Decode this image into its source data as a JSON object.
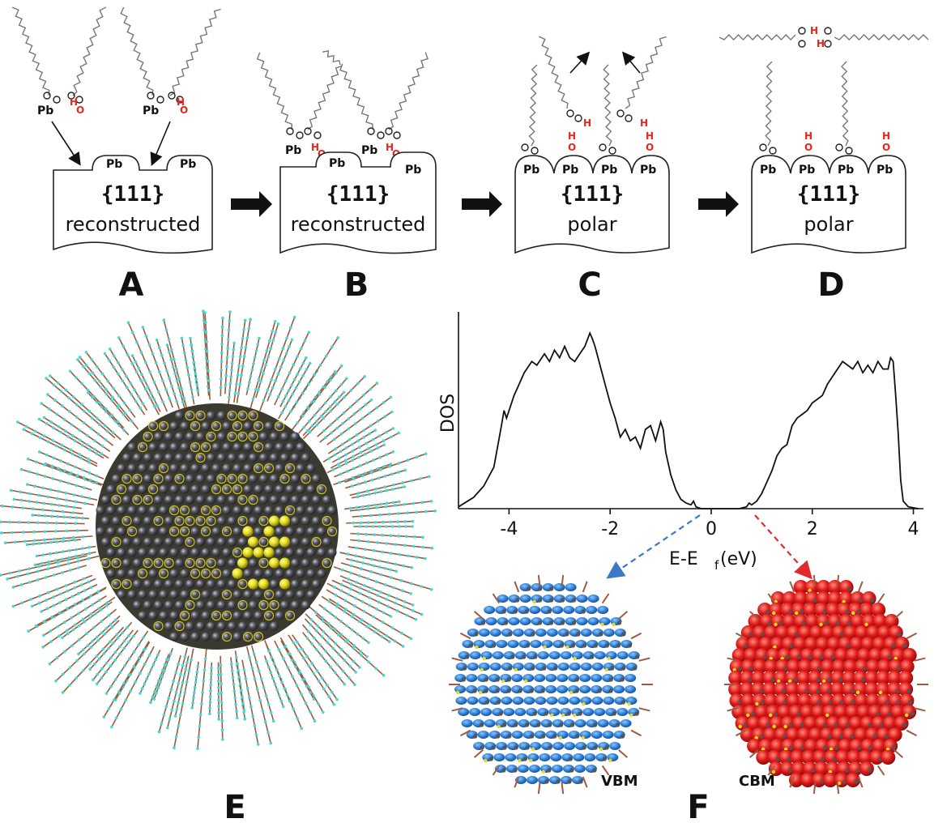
{
  "panels": {
    "A": {
      "letter": "A",
      "facet": "{111}",
      "surface": "reconstructed",
      "pb_left": "Pb",
      "pb_right": "Pb",
      "pb_ligand": "Pb"
    },
    "B": {
      "letter": "B",
      "facet": "{111}",
      "surface": "reconstructed",
      "pb_left": "Pb",
      "pb_right": "Pb",
      "pb_ligand": "Pb"
    },
    "C": {
      "letter": "C",
      "facet": "{111}",
      "surface": "polar",
      "pb": [
        "Pb",
        "Pb",
        "Pb",
        "Pb"
      ]
    },
    "D": {
      "letter": "D",
      "facet": "{111}",
      "surface": "polar",
      "pb": [
        "Pb",
        "Pb",
        "Pb",
        "Pb"
      ]
    },
    "E": {
      "letter": "E"
    },
    "F": {
      "letter": "F",
      "vbm_label": "VBM",
      "cbm_label": "CBM"
    }
  },
  "hydrogen_label": "H",
  "oxygen_label": "O",
  "colors": {
    "hydrogen_red": "#e8251f",
    "vbm_blue": "#2e7fd6",
    "cbm_red": "#e01a1a",
    "pb_gray": "#55555f",
    "s_yellow": "#e8e020",
    "ligand_cyan": "#44d8d8",
    "ligand_brown": "#9b5a3c"
  },
  "chart_data": {
    "type": "line",
    "xlabel": "E-E",
    "xlabel_sub": "f",
    "xlabel_unit": "(eV)",
    "ylabel": "DOS",
    "xlim": [
      -5,
      4.2
    ],
    "ylim": [
      0,
      1
    ],
    "xticks": [
      -4,
      -2,
      0,
      2,
      4
    ],
    "xtick_labels": [
      "-4",
      "-2",
      "0",
      "2",
      "4"
    ],
    "series": [
      {
        "x": [
          -5.0,
          -4.7,
          -4.5,
          -4.3,
          -4.15,
          -4.1,
          -4.05,
          -3.9,
          -3.8,
          -3.7,
          -3.55,
          -3.45,
          -3.3,
          -3.2,
          -3.1,
          -3.0,
          -2.9,
          -2.8,
          -2.7,
          -2.6,
          -2.5,
          -2.4,
          -2.35,
          -2.3,
          -2.2,
          -2.1,
          -2.0,
          -1.9,
          -1.8,
          -1.7,
          -1.6,
          -1.5,
          -1.4,
          -1.3,
          -1.2,
          -1.1,
          -1.0,
          -0.95,
          -0.9,
          -0.8,
          -0.7,
          -0.6,
          -0.5,
          -0.4,
          -0.35,
          -0.3,
          -0.2,
          -0.1,
          0.0,
          0.3,
          0.55,
          0.7,
          0.75,
          0.8,
          0.9,
          1.0,
          1.1,
          1.2,
          1.3,
          1.4,
          1.5,
          1.6,
          1.7,
          1.8,
          1.9,
          2.0,
          2.1,
          2.2,
          2.3,
          2.4,
          2.5,
          2.6,
          2.7,
          2.8,
          2.9,
          3.0,
          3.1,
          3.2,
          3.3,
          3.4,
          3.5,
          3.55,
          3.6,
          3.65,
          3.7,
          3.75,
          3.8,
          3.9,
          4.1
        ],
        "y": [
          0.01,
          0.06,
          0.12,
          0.22,
          0.44,
          0.52,
          0.48,
          0.6,
          0.66,
          0.72,
          0.78,
          0.76,
          0.82,
          0.78,
          0.84,
          0.8,
          0.86,
          0.8,
          0.78,
          0.82,
          0.86,
          0.93,
          0.9,
          0.86,
          0.76,
          0.66,
          0.56,
          0.48,
          0.38,
          0.42,
          0.36,
          0.38,
          0.32,
          0.42,
          0.44,
          0.36,
          0.46,
          0.42,
          0.3,
          0.18,
          0.1,
          0.05,
          0.03,
          0.02,
          0.04,
          0.01,
          0.0,
          0.0,
          0.0,
          0.0,
          0.0,
          0.01,
          0.03,
          0.02,
          0.04,
          0.08,
          0.14,
          0.2,
          0.28,
          0.32,
          0.34,
          0.44,
          0.48,
          0.5,
          0.52,
          0.56,
          0.58,
          0.6,
          0.66,
          0.7,
          0.74,
          0.78,
          0.76,
          0.74,
          0.78,
          0.72,
          0.76,
          0.72,
          0.78,
          0.74,
          0.74,
          0.8,
          0.78,
          0.6,
          0.4,
          0.15,
          0.04,
          0.01,
          0.0
        ]
      }
    ]
  }
}
